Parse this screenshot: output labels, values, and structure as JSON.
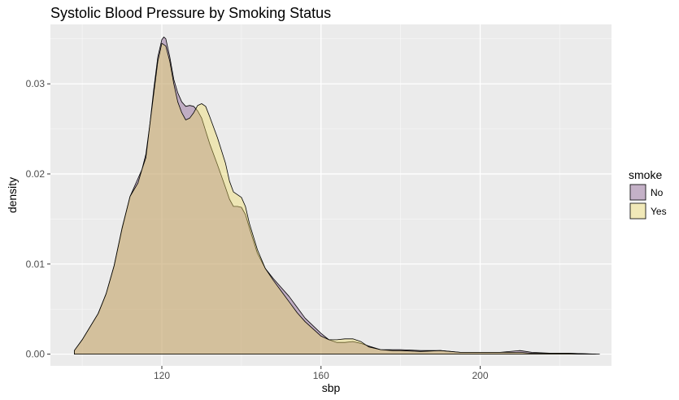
{
  "chart_data": {
    "type": "area",
    "title": "Systolic Blood Pressure by Smoking Status",
    "xlabel": "sbp",
    "ylabel": "density",
    "xlim": [
      92,
      233
    ],
    "ylim": [
      -0.0013,
      0.0366
    ],
    "x_ticks": [
      120,
      160,
      200
    ],
    "x_tick_labels": [
      "120",
      "160",
      "200"
    ],
    "x_minor": [
      100,
      140,
      180,
      220
    ],
    "y_ticks": [
      0.0,
      0.01,
      0.02,
      0.03
    ],
    "y_tick_labels": [
      "0.00",
      "0.01",
      "0.02",
      "0.03"
    ],
    "y_minor": [
      0.005,
      0.015,
      0.025,
      0.035
    ],
    "grid": true,
    "legend": {
      "title": "smoke",
      "position": "right",
      "entries": [
        {
          "label": "No",
          "color": "#7f4f86"
        },
        {
          "label": "Yes",
          "color": "#f0dc62"
        }
      ]
    },
    "series": [
      {
        "name": "No",
        "color": "#7f4f86",
        "x": [
          98,
          100,
          104,
          106,
          108,
          110,
          112,
          114,
          115,
          116,
          117,
          118,
          119,
          120,
          120.5,
          121,
          122,
          123,
          124,
          125,
          126,
          127,
          128,
          129,
          130,
          132,
          134,
          136,
          137,
          138,
          139,
          140,
          141,
          142,
          144,
          146,
          148,
          150,
          152,
          154,
          156,
          160,
          162,
          164,
          166,
          168,
          170,
          172,
          175,
          178,
          180,
          185,
          190,
          195,
          200,
          205,
          210,
          213,
          218,
          222,
          229
        ],
        "y": [
          0.0004,
          0.0016,
          0.0045,
          0.0067,
          0.0098,
          0.0139,
          0.0175,
          0.0195,
          0.0205,
          0.0222,
          0.0255,
          0.0295,
          0.033,
          0.0349,
          0.0352,
          0.035,
          0.033,
          0.0305,
          0.029,
          0.028,
          0.0275,
          0.0276,
          0.0275,
          0.027,
          0.0262,
          0.0234,
          0.021,
          0.0185,
          0.0172,
          0.0164,
          0.0164,
          0.0163,
          0.0155,
          0.014,
          0.0112,
          0.0095,
          0.0084,
          0.0074,
          0.0064,
          0.0052,
          0.004,
          0.0023,
          0.0016,
          0.0013,
          0.0013,
          0.0014,
          0.0012,
          0.0009,
          0.0005,
          0.0005,
          0.0005,
          0.0004,
          0.0004,
          0.0002,
          0.0002,
          0.0002,
          0.0004,
          0.0002,
          0.0001,
          0.0001,
          0.0
        ]
      },
      {
        "name": "Yes",
        "color": "#f0dc62",
        "x": [
          98,
          100,
          104,
          106,
          108,
          110,
          112,
          114,
          115,
          116,
          117,
          118,
          119,
          120,
          121,
          122,
          123,
          124,
          125,
          126,
          127,
          128,
          129,
          130,
          131,
          132,
          134,
          136,
          137,
          138,
          139,
          140,
          141,
          142,
          144,
          146,
          148,
          150,
          152,
          154,
          156,
          160,
          162,
          164,
          166,
          168,
          170,
          172,
          175,
          178,
          180,
          185,
          190,
          195,
          200,
          205,
          210,
          213,
          218,
          222,
          230
        ],
        "y": [
          0.0004,
          0.0016,
          0.0045,
          0.0067,
          0.0098,
          0.014,
          0.0175,
          0.019,
          0.0205,
          0.0218,
          0.0255,
          0.029,
          0.0325,
          0.0345,
          0.0342,
          0.0325,
          0.03,
          0.028,
          0.0268,
          0.026,
          0.0262,
          0.0268,
          0.0276,
          0.0278,
          0.0275,
          0.0264,
          0.024,
          0.0212,
          0.0192,
          0.018,
          0.0177,
          0.0174,
          0.0164,
          0.0145,
          0.0116,
          0.0095,
          0.0082,
          0.007,
          0.0058,
          0.0046,
          0.0036,
          0.002,
          0.0016,
          0.0016,
          0.0017,
          0.0017,
          0.0014,
          0.0008,
          0.0005,
          0.0004,
          0.0004,
          0.0003,
          0.0004,
          0.0002,
          0.0002,
          0.0002,
          0.0002,
          0.0001,
          0.0001,
          0.0001,
          0.0
        ]
      }
    ]
  }
}
